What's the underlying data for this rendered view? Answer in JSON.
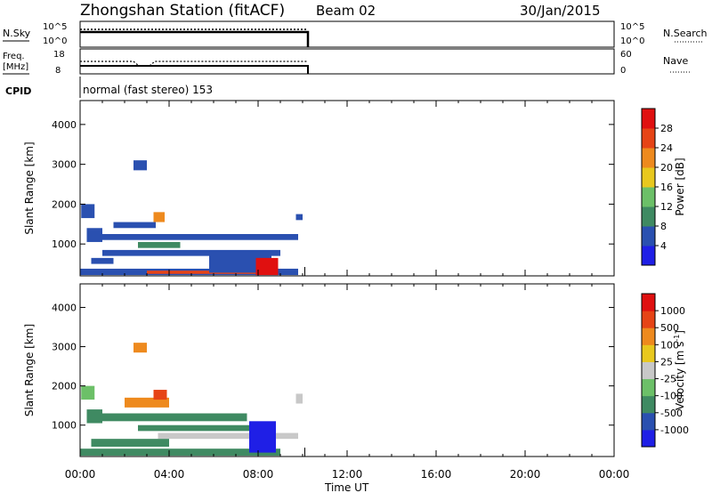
{
  "header": {
    "title": "Zhongshan Station (fitACF)",
    "beam": "Beam 02",
    "date": "30/Jan/2015"
  },
  "status_panels": {
    "nsky_label": "N.Sky",
    "nsky_ticks": [
      "10^5",
      "10^0"
    ],
    "nsearch_label": "N.Search",
    "nsearch_ticks": [
      "10^5",
      "10^0"
    ],
    "freq_label": "Freq.",
    "freq_unit": "[MHz]",
    "freq_ticks": [
      "18",
      "8"
    ],
    "nave_label": "Nave",
    "nave_ticks": [
      "60",
      "0"
    ],
    "cpid_label": "CPID",
    "cpid_text": "normal (fast stereo) 153"
  },
  "chart_data": [
    {
      "type": "heatmap",
      "name": "power",
      "ylabel": "Slant Range [km]",
      "xlabel": "",
      "yticks": [
        "1000",
        "2000",
        "3000",
        "4000"
      ],
      "ylim": [
        200,
        4600
      ],
      "xlim_hours": [
        0,
        24
      ],
      "colorbar": {
        "label": "Power [dB]",
        "ticks": [
          "4",
          "8",
          "12",
          "16",
          "20",
          "24",
          "28"
        ],
        "colors": [
          "#1f1fe6",
          "#2a50b0",
          "#3f8a62",
          "#6cc068",
          "#e8c81e",
          "#ee8a1e",
          "#e64416",
          "#e01010"
        ]
      },
      "data_extent_hours": [
        0.0,
        10.1
      ],
      "cells": [
        {
          "x0": 0.05,
          "x1": 0.65,
          "y0": 1650,
          "y1": 2000,
          "c": 1
        },
        {
          "x0": 0.3,
          "x1": 1.0,
          "y0": 1050,
          "y1": 1400,
          "c": 1
        },
        {
          "x0": 0.8,
          "x1": 9.8,
          "y0": 1100,
          "y1": 1250,
          "c": 1
        },
        {
          "x0": 1.5,
          "x1": 3.4,
          "y0": 1400,
          "y1": 1550,
          "c": 1
        },
        {
          "x0": 3.3,
          "x1": 3.8,
          "y0": 1550,
          "y1": 1800,
          "c": 5
        },
        {
          "x0": 2.6,
          "x1": 4.5,
          "y0": 900,
          "y1": 1050,
          "c": 2
        },
        {
          "x0": 1.0,
          "x1": 9.0,
          "y0": 700,
          "y1": 850,
          "c": 1
        },
        {
          "x0": 0.5,
          "x1": 1.5,
          "y0": 500,
          "y1": 650,
          "c": 1
        },
        {
          "x0": 0.0,
          "x1": 9.8,
          "y0": 220,
          "y1": 380,
          "c": 1
        },
        {
          "x0": 3.0,
          "x1": 8.5,
          "y0": 250,
          "y1": 330,
          "c": 6
        },
        {
          "x0": 5.8,
          "x1": 8.6,
          "y0": 280,
          "y1": 800,
          "c": 1
        },
        {
          "x0": 7.9,
          "x1": 8.9,
          "y0": 220,
          "y1": 650,
          "c": 7
        },
        {
          "x0": 2.4,
          "x1": 3.0,
          "y0": 2850,
          "y1": 3100,
          "c": 1
        },
        {
          "x0": 9.7,
          "x1": 10.0,
          "y0": 1600,
          "y1": 1750,
          "c": 1
        }
      ]
    },
    {
      "type": "heatmap",
      "name": "velocity",
      "ylabel": "Slant Range [km]",
      "xlabel": "Time UT",
      "yticks": [
        "1000",
        "2000",
        "3000",
        "4000"
      ],
      "ylim": [
        200,
        4600
      ],
      "xlim_hours": [
        0,
        24
      ],
      "xticks": [
        "00:00",
        "04:00",
        "08:00",
        "12:00",
        "16:00",
        "20:00",
        "00:00"
      ],
      "colorbar": {
        "label": "Velocity [m s",
        "label_superscript": "-1",
        "label_close": "]",
        "ticks": [
          "1000",
          "500",
          "100",
          "25",
          "-25",
          "-100",
          "-500",
          "-1000"
        ],
        "colors": [
          "#1f1fe6",
          "#2a50b0",
          "#3f8a62",
          "#6cc068",
          "#c8c8c8",
          "#e8c81e",
          "#ee8a1e",
          "#e64416",
          "#e01010"
        ]
      },
      "data_extent_hours": [
        0.0,
        10.1
      ],
      "cells": [
        {
          "x0": 0.05,
          "x1": 0.65,
          "y0": 1650,
          "y1": 2000,
          "c": 3
        },
        {
          "x0": 0.3,
          "x1": 1.0,
          "y0": 1050,
          "y1": 1400,
          "c": 2
        },
        {
          "x0": 0.8,
          "x1": 7.5,
          "y0": 1100,
          "y1": 1300,
          "c": 2
        },
        {
          "x0": 2.0,
          "x1": 4.0,
          "y0": 1450,
          "y1": 1700,
          "c": 6
        },
        {
          "x0": 3.3,
          "x1": 3.9,
          "y0": 1650,
          "y1": 1900,
          "c": 7
        },
        {
          "x0": 2.6,
          "x1": 8.0,
          "y0": 850,
          "y1": 1000,
          "c": 2
        },
        {
          "x0": 3.5,
          "x1": 9.8,
          "y0": 650,
          "y1": 800,
          "c": 4
        },
        {
          "x0": 0.5,
          "x1": 4.0,
          "y0": 450,
          "y1": 650,
          "c": 2
        },
        {
          "x0": 0.0,
          "x1": 9.0,
          "y0": 220,
          "y1": 400,
          "c": 2
        },
        {
          "x0": 7.6,
          "x1": 8.8,
          "y0": 300,
          "y1": 1100,
          "c": 0
        },
        {
          "x0": 2.4,
          "x1": 3.0,
          "y0": 2850,
          "y1": 3100,
          "c": 6
        },
        {
          "x0": 9.7,
          "x1": 10.0,
          "y0": 1550,
          "y1": 1800,
          "c": 4
        }
      ]
    }
  ]
}
